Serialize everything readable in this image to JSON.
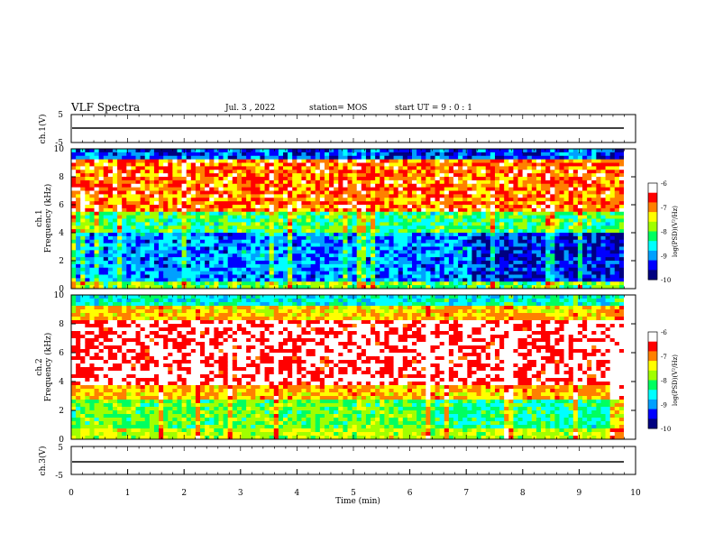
{
  "header": {
    "title": "VLF Spectra",
    "date": "Jul. 3 , 2022",
    "station": "station= MOS",
    "start": "start UT = 9 : 0 : 1"
  },
  "chart_data": [
    {
      "type": "line",
      "panel": "channel-1-voltage",
      "ylabel": "ch.1(V)",
      "yticks": [
        "5",
        "-5"
      ],
      "ylim": [
        -5,
        5
      ],
      "series": [
        {
          "name": "",
          "level": -0.3
        }
      ]
    },
    {
      "type": "heatmap",
      "panel": "channel-1-spectrogram",
      "ylabel": "ch.1\nFrequency (kHz)",
      "ylabel_lines": [
        "ch.1",
        "Frequency (kHz)"
      ],
      "ylim": [
        0,
        10
      ],
      "yticks": [
        "0",
        "2",
        "4",
        "6",
        "8",
        "10"
      ],
      "xlim": [
        0,
        10
      ],
      "colorbar": {
        "label": "log(PSD)(V²/Hz)",
        "range": [
          -10,
          -6
        ],
        "ticks": [
          "-6",
          "-7",
          "-8",
          "-9",
          "-10"
        ]
      }
    },
    {
      "type": "heatmap",
      "panel": "channel-2-spectrogram",
      "ylabel": "ch.2\nFrequency (kHz)",
      "ylabel_lines": [
        "ch.2",
        "Frequency (kHz)"
      ],
      "ylim": [
        0,
        10
      ],
      "yticks": [
        "0",
        "2",
        "4",
        "6",
        "8",
        "10"
      ],
      "xlim": [
        0,
        10
      ],
      "colorbar": {
        "label": "log(PSD)(V²/Hz)",
        "range": [
          -10,
          -6
        ],
        "ticks": [
          "-6",
          "-7",
          "-8",
          "-9",
          "-10"
        ]
      }
    },
    {
      "type": "line",
      "panel": "channel-3-voltage",
      "ylabel": "ch.3(V)",
      "yticks": [
        "5",
        "-5"
      ],
      "ylim": [
        -5,
        5
      ],
      "xlabel": "Time (min)",
      "xticks": [
        "0",
        "1",
        "2",
        "3",
        "4",
        "5",
        "6",
        "7",
        "8",
        "9",
        "10"
      ],
      "xlim": [
        0,
        10
      ],
      "series": [
        {
          "name": "",
          "level": -0.3
        }
      ]
    }
  ],
  "colors": {
    "colormap": [
      "#000080",
      "#0000ff",
      "#00a0ff",
      "#00ffff",
      "#00ff60",
      "#a0ff00",
      "#ffff00",
      "#ff8000",
      "#ff0000",
      "#ffffff"
    ]
  }
}
